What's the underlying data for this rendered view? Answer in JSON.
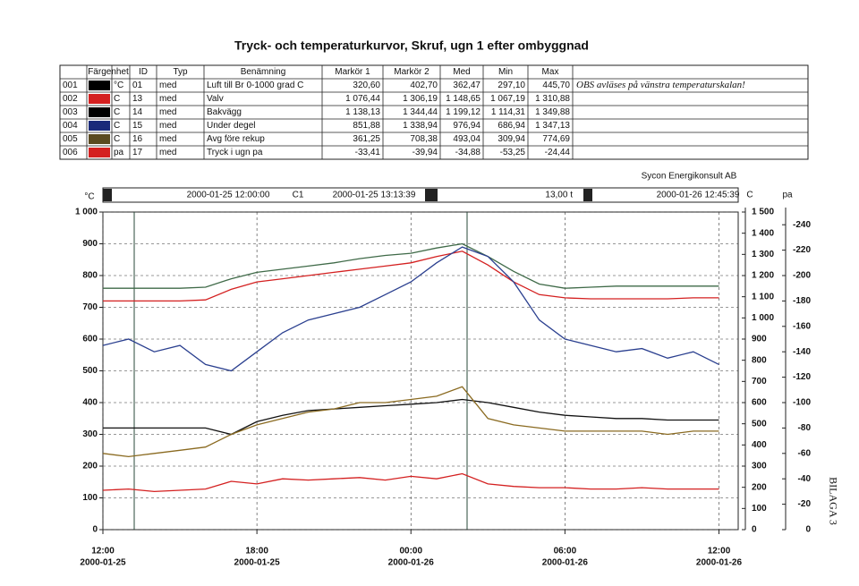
{
  "title": "Tryck- och temperaturkurvor, Skruf, ugn 1 efter ombyggnad",
  "company": "Sycon Energikonsult AB",
  "appendix": "BILAGA 3",
  "table": {
    "header": [
      "Färgenhet",
      "ID",
      "Typ",
      "Benämning",
      "Markör 1",
      "Markör 2",
      "Med",
      "Min",
      "Max"
    ],
    "note": "OBS avläses på vänstra temperaturskalan!",
    "rows": [
      {
        "nr": "001",
        "color": "#000000",
        "text_color": "#000000",
        "unit": "°C",
        "id": "01",
        "typ": "med",
        "name": "Luft till Br 0-1000 grad C",
        "values": [
          "320,60",
          "402,70",
          "362,47",
          "297,10",
          "445,70"
        ]
      },
      {
        "nr": "002",
        "color": "#d42020",
        "text_color": "#d42020",
        "unit": "C",
        "id": "13",
        "typ": "med",
        "name": "Valv",
        "values": [
          "1 076,44",
          "1 306,19",
          "1 148,65",
          "1 067,19",
          "1 310,88"
        ]
      },
      {
        "nr": "003",
        "color": "#000000",
        "text_color": "#000000",
        "unit": "C",
        "id": "14",
        "typ": "med",
        "name": "Bakvägg",
        "values": [
          "1 138,13",
          "1 344,44",
          "1 199,12",
          "1 114,31",
          "1 349,88"
        ]
      },
      {
        "nr": "004",
        "color": "#1a2a7a",
        "text_color": "#1a2a9a",
        "unit": "C",
        "id": "15",
        "typ": "med",
        "name": "Under degel",
        "values": [
          "851,88",
          "1 338,94",
          "976,94",
          "686,94",
          "1 347,13"
        ]
      },
      {
        "nr": "005",
        "color": "#5a4a20",
        "text_color": "#7a4a10",
        "unit": "C",
        "id": "16",
        "typ": "med",
        "name": "Avg före rekup",
        "values": [
          "361,25",
          "708,38",
          "493,04",
          "309,94",
          "774,69"
        ]
      },
      {
        "nr": "006",
        "color": "#d42020",
        "text_color": "#d42020",
        "unit": "pa",
        "id": "17",
        "typ": "med",
        "name": "Tryck i ugn pa",
        "values": [
          "-33,41",
          "-39,94",
          "-34,88",
          "-53,25",
          "-24,44"
        ]
      }
    ]
  },
  "chart_data": {
    "type": "line",
    "toolbar": {
      "start": "2000-01-25 12:00:00",
      "cursor": "C1",
      "cursor_time": "2000-01-25 13:13:39",
      "span": "13,00 t",
      "end": "2000-01-26 12:45:39"
    },
    "ylabel": "°C",
    "y2label": "C",
    "y3label": "pa",
    "xlim": [
      "2000-01-25T12:00",
      "2000-01-26T12:45"
    ],
    "xticks": [
      {
        "value": "2000-01-25T12:00",
        "label": "12:00",
        "date": "2000-01-25"
      },
      {
        "value": "2000-01-25T18:00",
        "label": "18:00",
        "date": "2000-01-25"
      },
      {
        "value": "2000-01-26T00:00",
        "label": "00:00",
        "date": "2000-01-26"
      },
      {
        "value": "2000-01-26T06:00",
        "label": "06:00",
        "date": "2000-01-26"
      },
      {
        "value": "2000-01-26T12:00",
        "label": "12:00",
        "date": "2000-01-26"
      }
    ],
    "ylim": [
      0,
      1000
    ],
    "yticks": [
      0,
      100,
      200,
      300,
      400,
      500,
      600,
      700,
      800,
      900,
      {
        "value": 1000,
        "label": "1 000"
      }
    ],
    "y2lim": [
      0,
      1500
    ],
    "y2ticks": [
      0,
      100,
      200,
      300,
      400,
      500,
      600,
      700,
      800,
      900,
      {
        "value": 1000,
        "label": "1 000"
      },
      {
        "value": 1100,
        "label": "1 100"
      },
      {
        "value": 1200,
        "label": "1 200"
      },
      {
        "value": 1300,
        "label": "1 300"
      },
      {
        "value": 1400,
        "label": "1 400"
      },
      {
        "value": 1500,
        "label": "1 500"
      }
    ],
    "y3lim": [
      0,
      -250
    ],
    "y3ticks": [
      0,
      -20,
      -40,
      -60,
      -80,
      -100,
      -120,
      -140,
      -160,
      -180,
      -200,
      -220,
      -240
    ],
    "grid": true,
    "x": [
      "2000-01-25T12:00",
      "2000-01-25T13:00",
      "2000-01-25T14:00",
      "2000-01-25T15:00",
      "2000-01-25T16:00",
      "2000-01-25T17:00",
      "2000-01-25T18:00",
      "2000-01-25T19:00",
      "2000-01-25T20:00",
      "2000-01-25T21:00",
      "2000-01-25T22:00",
      "2000-01-25T23:00",
      "2000-01-26T00:00",
      "2000-01-26T01:00",
      "2000-01-26T02:00",
      "2000-01-26T03:00",
      "2000-01-26T04:00",
      "2000-01-26T05:00",
      "2000-01-26T06:00",
      "2000-01-26T07:00",
      "2000-01-26T08:00",
      "2000-01-26T09:00",
      "2000-01-26T10:00",
      "2000-01-26T11:00",
      "2000-01-26T12:00"
    ],
    "series": [
      {
        "name": "Luft till Br 0-1000 grad C",
        "color": "#111111",
        "axis": "y",
        "values": [
          320,
          320,
          320,
          320,
          320,
          300,
          340,
          360,
          375,
          380,
          385,
          390,
          395,
          400,
          410,
          400,
          385,
          370,
          360,
          355,
          350,
          350,
          345,
          345,
          345
        ]
      },
      {
        "name": "Valv",
        "color": "#d42020",
        "axis": "y2",
        "values": [
          1080,
          1080,
          1080,
          1080,
          1085,
          1135,
          1170,
          1185,
          1200,
          1215,
          1230,
          1245,
          1260,
          1290,
          1315,
          1250,
          1170,
          1110,
          1095,
          1090,
          1090,
          1090,
          1090,
          1095,
          1095
        ]
      },
      {
        "name": "Bakvägg",
        "color": "#3f6a48",
        "axis": "y2",
        "values": [
          1140,
          1140,
          1140,
          1140,
          1145,
          1185,
          1215,
          1230,
          1245,
          1260,
          1280,
          1295,
          1305,
          1330,
          1350,
          1290,
          1220,
          1160,
          1140,
          1145,
          1150,
          1150,
          1150,
          1150,
          1150
        ]
      },
      {
        "name": "Under degel",
        "color": "#2a3f8f",
        "axis": "y2",
        "values": [
          870,
          900,
          840,
          870,
          780,
          750,
          840,
          930,
          990,
          1020,
          1050,
          1110,
          1170,
          1260,
          1335,
          1290,
          1170,
          990,
          900,
          870,
          840,
          855,
          810,
          840,
          780
        ]
      },
      {
        "name": "Avg före rekup",
        "color": "#8a6a20",
        "axis": "y2",
        "values": [
          360,
          345,
          360,
          375,
          390,
          450,
          495,
          525,
          555,
          570,
          600,
          600,
          615,
          630,
          675,
          525,
          495,
          480,
          465,
          465,
          465,
          465,
          450,
          465,
          465
        ]
      },
      {
        "name": "Tryck i ugn pa",
        "color": "#d42020",
        "axis": "y3",
        "values": [
          -31,
          -32,
          -30,
          -31,
          -32,
          -38,
          -36,
          -40,
          -39,
          -40,
          -41,
          -39,
          -42,
          -40,
          -44,
          -36,
          -34,
          -33,
          -33,
          -32,
          -32,
          -33,
          -32,
          -32,
          -32
        ]
      }
    ]
  }
}
